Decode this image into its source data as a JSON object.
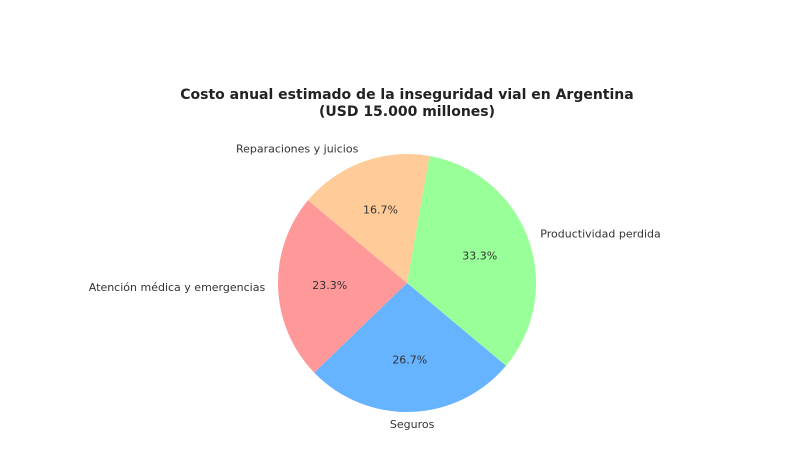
{
  "chart_data": {
    "type": "pie",
    "title": "Costo anual estimado de la inseguridad vial en Argentina",
    "subtitle": "(USD 15.000 millones)",
    "categories": [
      "Productividad perdida",
      "Seguros",
      "Atención médica y emergencias",
      "Reparaciones y juicios"
    ],
    "values": [
      33.3,
      26.7,
      23.3,
      16.7
    ],
    "value_labels": [
      "33.3%",
      "26.7%",
      "23.3%",
      "16.7%"
    ],
    "colors": [
      "#99ff99",
      "#66b3ff",
      "#ff9999",
      "#ffcc99"
    ],
    "start_angle_deg": 80,
    "direction": "clockwise",
    "legend": "none"
  }
}
